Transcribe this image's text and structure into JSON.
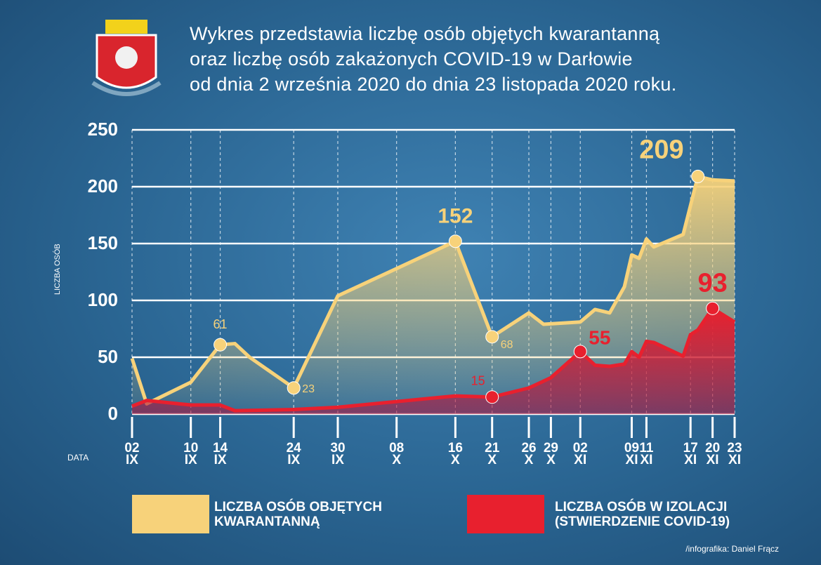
{
  "chart_data": {
    "type": "area",
    "title": [
      "Wykres przedstawia liczbę osób objętych kwarantanną",
      "oraz liczbę osób zakażonych COVID-19 w Darłowie",
      "od dnia 2 września 2020 do dnia 23 listopada 2020 roku."
    ],
    "xlabel": "DATA",
    "ylabel": "LICZBA OSÓB",
    "credit": "/infografika: Daniel Frącz",
    "xlim": [
      "2020-09-02",
      "2020-11-23"
    ],
    "ylim": [
      0,
      250
    ],
    "yticks": [
      0,
      50,
      100,
      150,
      200,
      250
    ],
    "grid": true,
    "xticks": [
      {
        "value": "2020-09-02",
        "label": "02\nIX"
      },
      {
        "value": "2020-09-10",
        "label": "10\nIX"
      },
      {
        "value": "2020-09-14",
        "label": "14\nIX"
      },
      {
        "value": "2020-09-24",
        "label": "24\nIX"
      },
      {
        "value": "2020-09-30",
        "label": "30\nIX"
      },
      {
        "value": "2020-10-08",
        "label": "08\nX"
      },
      {
        "value": "2020-10-16",
        "label": "16\nX"
      },
      {
        "value": "2020-10-21",
        "label": "21\nX"
      },
      {
        "value": "2020-10-26",
        "label": "26\nX"
      },
      {
        "value": "2020-10-29",
        "label": "29\nX"
      },
      {
        "value": "2020-11-02",
        "label": "02\nXI"
      },
      {
        "value": "2020-11-09",
        "label": "09\nXI"
      },
      {
        "value": "2020-11-11",
        "label": "11\nXI"
      },
      {
        "value": "2020-11-17",
        "label": "17\nXI"
      },
      {
        "value": "2020-11-20",
        "label": "20\nXI"
      },
      {
        "value": "2020-11-23",
        "label": "23\nXI"
      }
    ],
    "series": [
      {
        "name": "LICZBA OSÓB OBJĘTYCH\nKWARANTANNĄ",
        "color": "#f7d27a",
        "x": [
          "2020-09-02",
          "2020-09-04",
          "2020-09-10",
          "2020-09-14",
          "2020-09-16",
          "2020-09-18",
          "2020-09-24",
          "2020-09-30",
          "2020-10-16",
          "2020-10-21",
          "2020-10-26",
          "2020-10-28",
          "2020-11-02",
          "2020-11-04",
          "2020-11-06",
          "2020-11-08",
          "2020-11-09",
          "2020-11-10",
          "2020-11-11",
          "2020-11-12",
          "2020-11-16",
          "2020-11-18",
          "2020-11-20",
          "2020-11-23"
        ],
        "values": [
          49,
          9,
          28,
          61,
          62,
          50,
          23,
          104,
          152,
          68,
          89,
          79,
          81,
          92,
          89,
          112,
          140,
          137,
          154,
          147,
          158,
          209,
          206,
          205
        ],
        "labeled_x": [
          "2020-09-14",
          "2020-09-24",
          "2020-10-16",
          "2020-10-21",
          "2020-11-18"
        ]
      },
      {
        "name": "LICZBA OSÓB W IZOLACJI\n(STWIERDZENIE COVID-19)",
        "color": "#e8202e",
        "x": [
          "2020-09-02",
          "2020-09-04",
          "2020-09-10",
          "2020-09-14",
          "2020-09-16",
          "2020-09-24",
          "2020-09-30",
          "2020-10-16",
          "2020-10-21",
          "2020-10-26",
          "2020-10-29",
          "2020-11-02",
          "2020-11-04",
          "2020-11-06",
          "2020-11-08",
          "2020-11-09",
          "2020-11-10",
          "2020-11-11",
          "2020-11-12",
          "2020-11-16",
          "2020-11-17",
          "2020-11-18",
          "2020-11-20",
          "2020-11-23"
        ],
        "values": [
          7,
          12,
          8,
          8,
          3,
          4,
          6,
          16,
          15,
          23,
          32,
          55,
          43,
          42,
          44,
          55,
          50,
          64,
          63,
          51,
          70,
          74,
          93,
          81
        ],
        "labeled_x": [
          "2020-10-21",
          "2020-11-02",
          "2020-11-20"
        ]
      }
    ]
  }
}
